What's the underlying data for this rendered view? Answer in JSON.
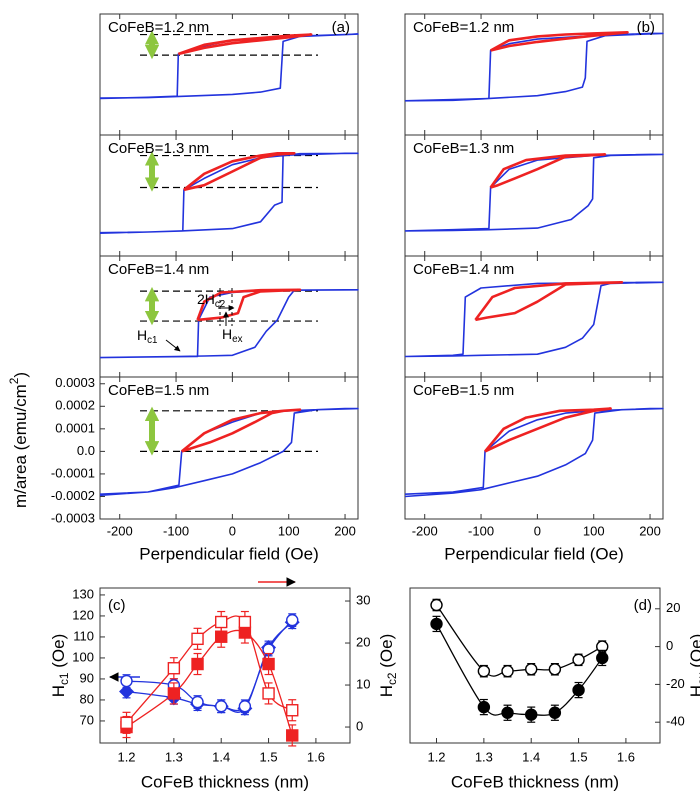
{
  "chart_data": [
    {
      "type": "line",
      "title": "CoFeB=1.2 nm",
      "panel_label": "(a)",
      "xlim": [
        -235,
        223
      ],
      "xticks": [
        -200,
        -100,
        0,
        100,
        200
      ],
      "ylim": [
        -0.00025,
        0.00028
      ],
      "series": [
        {
          "color": "#2233dd",
          "x": [
            -235,
            -150,
            -100,
            0,
            50,
            85,
            90,
            120,
            223,
            200,
            100,
            0,
            -50,
            -96,
            -98,
            -150,
            -235
          ],
          "values": [
            -8.8e-05,
            -8.6e-05,
            -8.2e-05,
            -7.2e-05,
            -6.2e-05,
            -4.5e-05,
            0.00016,
            0.000182,
            0.000192,
            0.00019,
            0.000182,
            0.000165,
            0.00014,
            0.000105,
            -8e-05,
            -8.5e-05,
            -9e-05
          ]
        },
        {
          "color": "#ee2222",
          "x": [
            -96,
            -50,
            0,
            50,
            100,
            140,
            100,
            50,
            0,
            -50,
            -96
          ],
          "values": [
            0.000105,
            0.000145,
            0.000165,
            0.000175,
            0.000185,
            0.00019,
            0.000178,
            0.000165,
            0.000152,
            0.000132,
            0.000105
          ]
        }
      ],
      "levels": [
        0.00019,
        0.0001
      ]
    },
    {
      "type": "line",
      "title": "CoFeB=1.3 nm",
      "xlim": [
        -235,
        223
      ],
      "xticks": [
        -200,
        -100,
        0,
        100,
        200
      ],
      "ylim": [
        -0.00025,
        0.00028
      ],
      "series": [
        {
          "color": "#2233dd",
          "x": [
            -235,
            -150,
            -90,
            0,
            50,
            75,
            88,
            90,
            120,
            223,
            200,
            100,
            50,
            0,
            -50,
            -86,
            -88,
            -150,
            -235
          ],
          "values": [
            -0.000148,
            -0.000145,
            -0.00014,
            -0.00013,
            -0.0001,
            -2.7e-05,
            -1.5e-05,
            0.00019,
            0.000198,
            0.0002,
            0.0002,
            0.000192,
            0.00018,
            0.00015,
            9e-05,
            4e-05,
            -0.00014,
            -0.000145,
            -0.00015
          ]
        },
        {
          "color": "#ee2222",
          "x": [
            -86,
            -50,
            0,
            50,
            80,
            110,
            80,
            50,
            0,
            -50,
            -86
          ],
          "values": [
            4e-05,
            0.00011,
            0.000165,
            0.00019,
            0.0002,
            0.0002,
            0.000195,
            0.00018,
            0.00012,
            6e-05,
            4e-05
          ]
        }
      ],
      "levels": [
        0.00019,
        5e-05
      ]
    },
    {
      "type": "line",
      "title": "CoFeB=1.4 nm",
      "xlim": [
        -235,
        223
      ],
      "xticks": [
        -200,
        -100,
        0,
        100,
        200
      ],
      "ylim": [
        -0.00025,
        0.00028
      ],
      "series": [
        {
          "color": "#2233dd",
          "x": [
            -235,
            -100,
            -50,
            0,
            40,
            60,
            80,
            100,
            110,
            223,
            200,
            100,
            50,
            0,
            -40,
            -60,
            -62,
            -150,
            -235
          ],
          "values": [
            -0.000165,
            -0.00016,
            -0.000158,
            -0.000155,
            -0.00012,
            -5e-05,
            0.0,
            0.0001,
            0.00013,
            0.000132,
            0.000132,
            0.00013,
            0.000128,
            0.00012,
            0.0001,
            0.0,
            -0.00016,
            -0.000162,
            -0.000165
          ]
        },
        {
          "color": "#ee2222",
          "x": [
            -62,
            -50,
            -20,
            50,
            120,
            50,
            20,
            10,
            -20,
            -62
          ],
          "values": [
            0.0,
            8e-05,
            0.00012,
            0.00013,
            0.000132,
            0.000125,
            0.0001,
            3e-05,
            1e-05,
            0.0
          ]
        }
      ],
      "levels": [
        0.000126,
        -5e-06
      ],
      "annotations": [
        {
          "text": "2H",
          "sub": "c2"
        },
        {
          "text": "H",
          "sub": "c1"
        },
        {
          "text": "H",
          "sub": "ex"
        }
      ]
    },
    {
      "type": "line",
      "title": "CoFeB=1.5 nm",
      "xlim": [
        -235,
        223
      ],
      "xticks": [
        -200,
        -100,
        0,
        100,
        200
      ],
      "ylim": [
        -0.0003,
        0.00033
      ],
      "yticks": [
        0.0003,
        0.0002,
        0.0001,
        {
          "value": 0,
          "label": "0.0"
        },
        -0.0001,
        -0.0002,
        -0.0003
      ],
      "ylabel": {
        "text": "m/area (emu/cm",
        "sup": "2",
        "after": ")"
      },
      "xlabel": "Perpendicular field (Oe)",
      "series": [
        {
          "color": "#2233dd",
          "x": [
            -235,
            -150,
            -100,
            -50,
            0,
            50,
            90,
            105,
            110,
            150,
            223,
            200,
            100,
            50,
            0,
            -50,
            -90,
            -95,
            -150,
            -235
          ],
          "values": [
            -0.000195,
            -0.00018,
            -0.00016,
            -0.00013,
            -0.0001,
            -5e-05,
            0.0,
            4e-05,
            0.00017,
            0.000185,
            0.00019,
            0.00019,
            0.00018,
            0.00017,
            0.00013,
            8e-05,
            0.0,
            -0.00015,
            -0.00018,
            -0.00019
          ]
        },
        {
          "color": "#ee2222",
          "x": [
            -90,
            -50,
            0,
            50,
            90,
            120,
            90,
            70,
            40,
            0,
            -40,
            -90
          ],
          "values": [
            0.0,
            8e-05,
            0.00014,
            0.00017,
            0.00018,
            0.000185,
            0.00018,
            0.00017,
            0.00013,
            8e-05,
            4e-05,
            0.0
          ]
        }
      ],
      "levels": [
        0.00018,
        0.0
      ]
    },
    {
      "type": "line",
      "title": "CoFeB=1.2 nm",
      "panel_label": "(b)",
      "xlim": [
        -235,
        223
      ],
      "xticks": [
        -200,
        -100,
        0,
        100,
        200
      ],
      "ylim": [
        -0.00025,
        0.00028
      ],
      "series": [
        {
          "color": "#2233dd",
          "x": [
            -235,
            -150,
            -100,
            0,
            50,
            80,
            85,
            88,
            120,
            223,
            200,
            100,
            0,
            -50,
            -83,
            -86,
            -150,
            -235
          ],
          "values": [
            -0.0001,
            -9.8e-05,
            -9.2e-05,
            -7.8e-05,
            -6e-05,
            -4e-05,
            0.0,
            0.00016,
            0.000185,
            0.000195,
            0.000195,
            0.000185,
            0.00017,
            0.00015,
            0.00012,
            -9e-05,
            -9.5e-05,
            -0.0001
          ]
        },
        {
          "color": "#ee2222",
          "x": [
            -83,
            -50,
            0,
            50,
            100,
            160,
            100,
            50,
            0,
            -50,
            -83
          ],
          "values": [
            0.00012,
            0.000165,
            0.000182,
            0.00019,
            0.000195,
            0.0002,
            0.000185,
            0.000172,
            0.000158,
            0.00014,
            0.00012
          ]
        }
      ]
    },
    {
      "type": "line",
      "title": "CoFeB=1.3 nm",
      "xlim": [
        -235,
        223
      ],
      "xticks": [
        -200,
        -100,
        0,
        100,
        200
      ],
      "ylim": [
        -0.00025,
        0.00028
      ],
      "series": [
        {
          "color": "#2233dd",
          "x": [
            -235,
            -150,
            -85,
            0,
            60,
            90,
            98,
            100,
            130,
            223,
            200,
            100,
            0,
            -50,
            -83,
            -86,
            -150,
            -235
          ],
          "values": [
            -0.00014,
            -0.000138,
            -0.000135,
            -0.000128,
            -9e-05,
            -3e-05,
            0.0,
            0.00018,
            0.00019,
            0.000195,
            0.000195,
            0.00019,
            0.00017,
            0.00013,
            5e-05,
            -0.00013,
            -0.000135,
            -0.00014
          ]
        },
        {
          "color": "#ee2222",
          "x": [
            -83,
            -60,
            -20,
            50,
            120,
            50,
            0,
            -40,
            -70,
            -83
          ],
          "values": [
            5e-05,
            0.00013,
            0.00017,
            0.00019,
            0.000195,
            0.000185,
            0.00013,
            9e-05,
            6e-05,
            5e-05
          ]
        }
      ]
    },
    {
      "type": "line",
      "title": "CoFeB=1.4 nm",
      "xlim": [
        -235,
        223
      ],
      "xticks": [
        -200,
        -100,
        0,
        100,
        200
      ],
      "ylim": [
        -0.00025,
        0.00028
      ],
      "series": [
        {
          "color": "#2233dd",
          "x": [
            -235,
            -150,
            -100,
            0,
            50,
            80,
            100,
            113,
            130,
            223,
            200,
            100,
            0,
            -100,
            -128,
            -132,
            -150,
            -235
          ],
          "values": [
            -0.00016,
            -0.000158,
            -0.000155,
            -0.00015,
            -0.00012,
            -8e-05,
            -2e-05,
            0.00015,
            0.00016,
            0.000165,
            0.000165,
            0.000162,
            0.00016,
            0.00014,
            0.0001,
            -0.00015,
            -0.000155,
            -0.00016
          ]
        },
        {
          "color": "#ee2222",
          "x": [
            -110,
            -80,
            -40,
            50,
            150,
            50,
            0,
            -40,
            -90,
            -110
          ],
          "values": [
            0.0,
            0.0001,
            0.00014,
            0.00016,
            0.000165,
            0.000155,
            8e-05,
            3e-05,
            1e-05,
            0.0
          ]
        }
      ]
    },
    {
      "type": "line",
      "title": "CoFeB=1.5 nm",
      "xlim": [
        -235,
        223
      ],
      "xticks": [
        -200,
        -100,
        0,
        100,
        200
      ],
      "ylim": [
        -0.0003,
        0.00033
      ],
      "xlabel": "Perpendicular field (Oe)",
      "series": [
        {
          "color": "#2233dd",
          "x": [
            -235,
            -150,
            -100,
            -50,
            0,
            50,
            85,
            98,
            102,
            150,
            223,
            200,
            100,
            50,
            0,
            -50,
            -93,
            -96,
            -150,
            -235
          ],
          "values": [
            -0.0002,
            -0.000185,
            -0.00017,
            -0.00014,
            -0.00011,
            -6e-05,
            -1e-05,
            5e-05,
            0.00017,
            0.000185,
            0.00019,
            0.00019,
            0.00018,
            0.00017,
            0.00014,
            9e-05,
            0.0,
            -0.00016,
            -0.00018,
            -0.00019
          ]
        },
        {
          "color": "#ee2222",
          "x": [
            -93,
            -60,
            -20,
            40,
            100,
            130,
            100,
            50,
            0,
            -50,
            -93
          ],
          "values": [
            0.0,
            0.0001,
            0.00015,
            0.00018,
            0.000185,
            0.00019,
            0.00018,
            0.00015,
            0.0001,
            5e-05,
            0.0
          ]
        }
      ]
    },
    {
      "type": "scatter",
      "panel_label": "(c)",
      "x": [
        1.2,
        1.3,
        1.35,
        1.4,
        1.45,
        1.5,
        1.55
      ],
      "xlim": [
        1.144,
        1.672
      ],
      "xticks": [
        1.2,
        1.3,
        1.4,
        1.5,
        1.6
      ],
      "xlabel": "CoFeB thickness (nm)",
      "ylim": [
        59.5,
        133.3
      ],
      "yticks": [
        70,
        80,
        90,
        100,
        110,
        120,
        130
      ],
      "ylabel": {
        "text": "H",
        "sub": "c1",
        "after": " (Oe)"
      },
      "y2lim": [
        -3.8,
        33.1
      ],
      "y2ticks": [
        0,
        10,
        20,
        30
      ],
      "y2label": {
        "text": "H",
        "sub": "c2",
        "after": " (Oe)"
      },
      "series": [
        {
          "color": "#2233dd",
          "marker": "diamond",
          "filled": true,
          "values": [
            84,
            81,
            78,
            77,
            76,
            105,
            117
          ],
          "errors": [
            3,
            3,
            3,
            3,
            3,
            3,
            3
          ]
        },
        {
          "color": "#2233dd",
          "marker": "circle",
          "filled": false,
          "values": [
            89,
            87,
            79,
            77,
            77,
            104,
            118
          ],
          "errors": [
            3,
            3,
            3,
            3,
            3,
            3,
            3
          ]
        },
        {
          "color": "#ee2222",
          "marker": "square",
          "filled": true,
          "axis": "y2",
          "values": [
            0,
            8,
            15,
            21.5,
            22.5,
            15,
            -2
          ],
          "errors": [
            2.5,
            2.5,
            2.5,
            2.5,
            2.5,
            2.5,
            2.5
          ]
        },
        {
          "color": "#ee2222",
          "marker": "square",
          "filled": false,
          "axis": "y2",
          "values": [
            1,
            14,
            21,
            25,
            25,
            8,
            4
          ],
          "errors": [
            2.5,
            2.5,
            2.5,
            2.5,
            2.5,
            2.5,
            2.5
          ]
        }
      ]
    },
    {
      "type": "scatter",
      "panel_label": "(d)",
      "x": [
        1.2,
        1.3,
        1.35,
        1.4,
        1.45,
        1.5,
        1.55
      ],
      "xlim": [
        1.144,
        1.672
      ],
      "xticks": [
        1.2,
        1.3,
        1.4,
        1.5,
        1.6
      ],
      "xlabel": "CoFeB thickness (nm)",
      "ylim": [
        -51,
        31
      ],
      "yticks": [
        -40,
        -20,
        0,
        20
      ],
      "y_axis_side": "right",
      "ylabel": {
        "text": "H",
        "sub": "ex",
        "after": " (Oe)"
      },
      "series": [
        {
          "color": "#000000",
          "marker": "circle",
          "filled": false,
          "values": [
            22,
            -13,
            -13,
            -12,
            -12,
            -7,
            0
          ],
          "errors": [
            3,
            3,
            3,
            3,
            3,
            3,
            3
          ]
        },
        {
          "color": "#000000",
          "marker": "circle",
          "filled": true,
          "values": [
            12,
            -32,
            -35,
            -36,
            -35,
            -23,
            -6
          ],
          "errors": [
            4,
            4,
            4,
            4,
            4,
            4,
            4
          ]
        }
      ]
    }
  ]
}
